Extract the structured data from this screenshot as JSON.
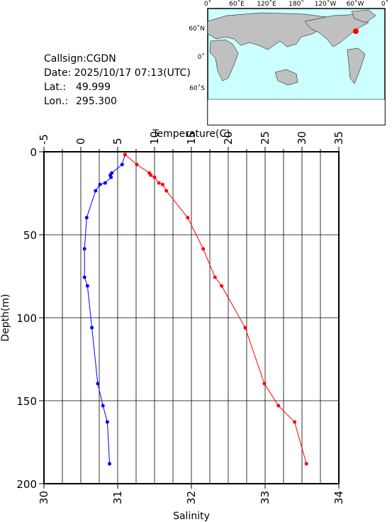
{
  "info": {
    "callsign": "Callsign:CGDN",
    "date": "Date:  2025/10/17 07:13(UTC)",
    "lat_label": "Lat.:",
    "lat": "49.999",
    "lon_label": "Lon.:",
    "lon": "295.300"
  },
  "map": {
    "xlabels": [
      "0˚",
      "60˚E",
      "120˚E",
      "180˚",
      "120˚W",
      "60˚W",
      "0˚"
    ],
    "ylabels": [
      "60˚N",
      "0˚",
      "60˚S"
    ],
    "marker_color": "#ff0000"
  },
  "chart_data": {
    "type": "line",
    "ylabel": "Depth(m)",
    "ylim": [
      0,
      200
    ],
    "yticks": [
      0,
      50,
      100,
      150,
      200
    ],
    "y_inverted": true,
    "xlabel": "Salinity",
    "xlim": [
      30,
      34
    ],
    "xticks": [
      30,
      31,
      32,
      33,
      34
    ],
    "x2label": "Temperature(C)",
    "x2lim": [
      -5,
      35
    ],
    "x2ticks": [
      -5,
      0,
      5,
      10,
      15,
      20,
      25,
      30,
      35
    ],
    "x2minorticks": [
      -2.5,
      2.5,
      7.5,
      12.5,
      17.5,
      22.5,
      27.5,
      32.5
    ],
    "grid": true,
    "depth": [
      1.7,
      7.7,
      12.8,
      14.1,
      15.4,
      18.8,
      19.7,
      23.5,
      39.7,
      58.5,
      75.6,
      80.8,
      106,
      139.7,
      153,
      162.8,
      188
    ],
    "series": [
      {
        "name": "Temperature",
        "color": "#0000ff",
        "axis": "x2",
        "values": [
          6.0,
          5.6,
          4.2,
          4.0,
          4.1,
          3.3,
          2.6,
          2.0,
          0.8,
          0.5,
          0.5,
          0.9,
          1.5,
          2.3,
          3.0,
          3.6,
          3.9
        ]
      },
      {
        "name": "Salinity",
        "color": "#ff0000",
        "axis": "x",
        "values": [
          31.1,
          31.26,
          31.43,
          31.45,
          31.5,
          31.56,
          31.61,
          31.66,
          31.95,
          32.16,
          32.32,
          32.41,
          32.73,
          32.99,
          33.18,
          33.4,
          33.56
        ]
      }
    ]
  }
}
